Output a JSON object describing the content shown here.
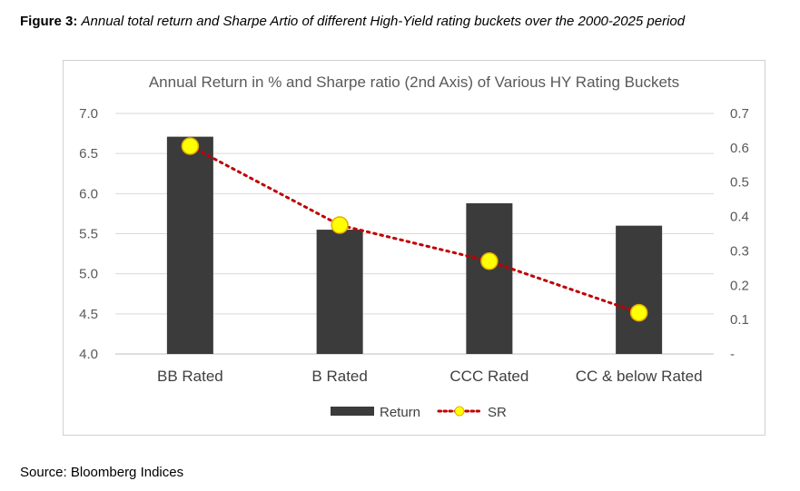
{
  "caption": {
    "label": "Figure 3:",
    "text": "Annual total return and Sharpe Artio of different High-Yield rating buckets over the 2000-2025 period"
  },
  "source": "Source: Bloomberg Indices",
  "colors": {
    "bar": "#3b3b3b",
    "line": "#c00000",
    "marker_fill": "#ffff00",
    "marker_stroke": "#e0b000",
    "grid": "#d9d9d9"
  },
  "chart_data": {
    "type": "bar",
    "title": "Annual Return in % and Sharpe ratio (2nd Axis) of Various HY Rating Buckets",
    "categories": [
      "BB Rated",
      "B Rated",
      "CCC Rated",
      "CC & below Rated"
    ],
    "series": [
      {
        "name": "Return",
        "type": "bar",
        "axis": "left",
        "values": [
          6.71,
          5.55,
          5.88,
          5.6
        ]
      },
      {
        "name": "SR",
        "type": "line",
        "style": "dotted",
        "axis": "right",
        "values": [
          0.605,
          0.375,
          0.27,
          0.12
        ]
      }
    ],
    "ylim": [
      4.0,
      7.0
    ],
    "y2lim": [
      0,
      0.7
    ],
    "yticks": [
      "4.0",
      "4.5",
      "5.0",
      "5.5",
      "6.0",
      "6.5",
      "7.0"
    ],
    "y2ticks": [
      "-",
      "0.1",
      "0.2",
      "0.3",
      "0.4",
      "0.5",
      "0.6",
      "0.7"
    ],
    "grid": true,
    "legend": "bottom"
  }
}
